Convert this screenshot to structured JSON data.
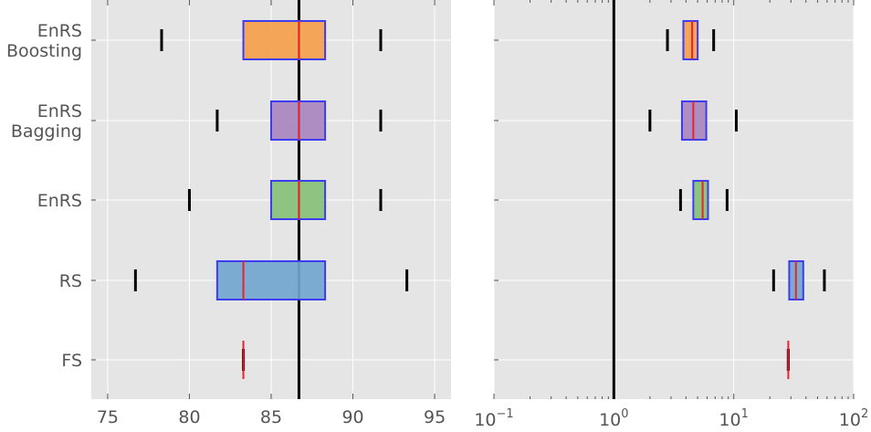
{
  "chart_data": [
    {
      "type": "boxplot",
      "orientation": "horizontal",
      "scale": "linear",
      "xlim": [
        74,
        96
      ],
      "xticks": [
        75,
        80,
        85,
        90,
        95
      ],
      "xtick_labels": [
        "75",
        "80",
        "85",
        "90",
        "95"
      ],
      "reference_line": 86.7,
      "grid": true,
      "categories": [
        {
          "label_lines": [
            "EnRS",
            "Boosting"
          ],
          "whisker_low": 78.3,
          "q1": 83.3,
          "median": 86.7,
          "q3": 88.3,
          "whisker_high": 91.7,
          "fill": "#f5a04c"
        },
        {
          "label_lines": [
            "EnRS",
            "Bagging"
          ],
          "whisker_low": 81.7,
          "q1": 85.0,
          "median": 86.7,
          "q3": 88.3,
          "whisker_high": 91.7,
          "fill": "#a986c0"
        },
        {
          "label_lines": [
            "EnRS"
          ],
          "whisker_low": 80.0,
          "q1": 85.0,
          "median": 86.7,
          "q3": 88.3,
          "whisker_high": 91.7,
          "fill": "#85c17a"
        },
        {
          "label_lines": [
            "RS"
          ],
          "whisker_low": 76.7,
          "q1": 81.7,
          "median": 83.3,
          "q3": 88.3,
          "whisker_high": 93.3,
          "fill": "#72a6cf"
        },
        {
          "label_lines": [
            "FS"
          ],
          "whisker_low": 83.3,
          "q1": 83.3,
          "median": 83.3,
          "q3": 83.3,
          "whisker_high": 83.3,
          "fill": "#72a6cf"
        }
      ]
    },
    {
      "type": "boxplot",
      "orientation": "horizontal",
      "scale": "log",
      "xlim": [
        0.1,
        100
      ],
      "xticks": [
        0.1,
        1,
        10,
        100
      ],
      "xtick_labels": [
        {
          "base": "10",
          "exp": "−1"
        },
        {
          "base": "10",
          "exp": "0"
        },
        {
          "base": "10",
          "exp": "1"
        },
        {
          "base": "10",
          "exp": "2"
        }
      ],
      "reference_line": 1,
      "grid": true,
      "categories": [
        {
          "whisker_low": 2.8,
          "q1": 3.8,
          "median": 4.5,
          "q3": 5.0,
          "whisker_high": 6.8,
          "fill": "#f5a04c"
        },
        {
          "whisker_low": 2.0,
          "q1": 3.7,
          "median": 4.6,
          "q3": 5.9,
          "whisker_high": 10.5,
          "fill": "#a986c0"
        },
        {
          "whisker_low": 3.6,
          "q1": 4.6,
          "median": 5.5,
          "q3": 6.1,
          "whisker_high": 8.8,
          "fill": "#85c17a"
        },
        {
          "whisker_low": 21.5,
          "q1": 29.0,
          "median": 33.0,
          "q3": 38.0,
          "whisker_high": 57.0,
          "fill": "#72a6cf"
        },
        {
          "whisker_low": 28.5,
          "q1": 28.5,
          "median": 28.5,
          "q3": 28.5,
          "whisker_high": 28.5,
          "fill": "#72a6cf"
        }
      ]
    }
  ],
  "colors": {
    "panel_bg": "#e5e5e5",
    "grid": "#ffffff",
    "box_edge": "#3c3cf0",
    "median": "#e8232b",
    "whisker": "#000000",
    "reference_line": "#000000",
    "text": "#555555"
  }
}
